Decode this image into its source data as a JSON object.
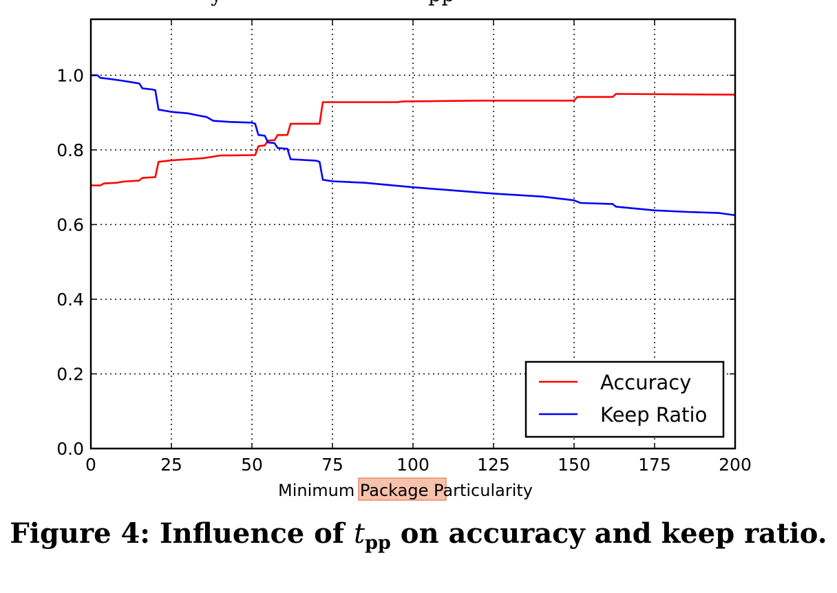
{
  "header": {
    "left_fragment": "y",
    "right_fragment": "pp"
  },
  "chart_data": {
    "type": "line",
    "xlabel": "Minimum Package Particularity",
    "xlabel_highlight": "Package P",
    "ylabel": "",
    "xlim": [
      0,
      200
    ],
    "ylim": [
      0.0,
      1.15
    ],
    "xticks": [
      0,
      25,
      50,
      75,
      100,
      125,
      150,
      175,
      200
    ],
    "yticks": [
      0.0,
      0.2,
      0.4,
      0.6,
      0.8,
      1.0
    ],
    "grid": true,
    "legend_position": "lower-right",
    "series": [
      {
        "name": "Accuracy",
        "color": "#ff0000",
        "points": [
          [
            0,
            0.705
          ],
          [
            3,
            0.705
          ],
          [
            4,
            0.71
          ],
          [
            8,
            0.712
          ],
          [
            10,
            0.715
          ],
          [
            15,
            0.718
          ],
          [
            16,
            0.725
          ],
          [
            20,
            0.727
          ],
          [
            21,
            0.768
          ],
          [
            25,
            0.772
          ],
          [
            35,
            0.778
          ],
          [
            38,
            0.782
          ],
          [
            40,
            0.785
          ],
          [
            51,
            0.786
          ],
          [
            52,
            0.81
          ],
          [
            54,
            0.812
          ],
          [
            55,
            0.825
          ],
          [
            57,
            0.826
          ],
          [
            58,
            0.84
          ],
          [
            61,
            0.84
          ],
          [
            62,
            0.87
          ],
          [
            71,
            0.87
          ],
          [
            72,
            0.928
          ],
          [
            95,
            0.928
          ],
          [
            97,
            0.93
          ],
          [
            120,
            0.932
          ],
          [
            150,
            0.932
          ],
          [
            151,
            0.942
          ],
          [
            162,
            0.942
          ],
          [
            163,
            0.95
          ],
          [
            200,
            0.948
          ]
        ]
      },
      {
        "name": "Keep Ratio",
        "color": "#0000ff",
        "points": [
          [
            0,
            1.0
          ],
          [
            2,
            1.0
          ],
          [
            3,
            0.993
          ],
          [
            6,
            0.99
          ],
          [
            10,
            0.985
          ],
          [
            15,
            0.978
          ],
          [
            16,
            0.965
          ],
          [
            19,
            0.962
          ],
          [
            20,
            0.96
          ],
          [
            21,
            0.908
          ],
          [
            25,
            0.902
          ],
          [
            30,
            0.898
          ],
          [
            33,
            0.893
          ],
          [
            36,
            0.888
          ],
          [
            38,
            0.878
          ],
          [
            43,
            0.875
          ],
          [
            50,
            0.873
          ],
          [
            51,
            0.87
          ],
          [
            52,
            0.84
          ],
          [
            54,
            0.838
          ],
          [
            55,
            0.82
          ],
          [
            57,
            0.818
          ],
          [
            58,
            0.805
          ],
          [
            61,
            0.803
          ],
          [
            62,
            0.775
          ],
          [
            70,
            0.771
          ],
          [
            71,
            0.768
          ],
          [
            72,
            0.72
          ],
          [
            75,
            0.716
          ],
          [
            85,
            0.712
          ],
          [
            100,
            0.7
          ],
          [
            125,
            0.683
          ],
          [
            140,
            0.675
          ],
          [
            150,
            0.665
          ],
          [
            152,
            0.658
          ],
          [
            162,
            0.655
          ],
          [
            163,
            0.648
          ],
          [
            175,
            0.638
          ],
          [
            185,
            0.634
          ],
          [
            195,
            0.631
          ],
          [
            200,
            0.625
          ]
        ]
      }
    ]
  },
  "caption": {
    "prefix": "Figure 4: Influence of ",
    "symbol": "t",
    "subscript": "pp",
    "suffix": " on accuracy and keep ratio."
  }
}
